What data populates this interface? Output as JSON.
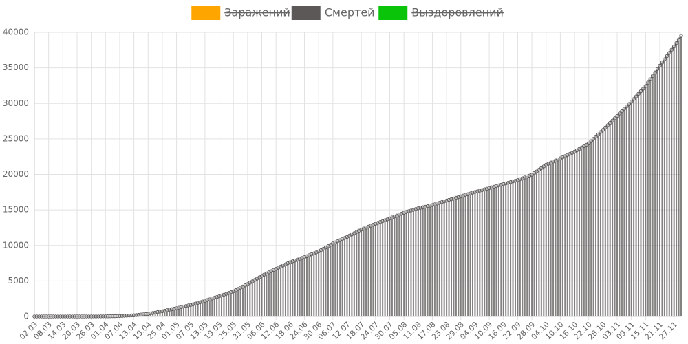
{
  "chart_data": {
    "type": "bar",
    "line_overlay": true,
    "series": [
      {
        "name": "Заражений",
        "color": "#ffa500",
        "hidden": true
      },
      {
        "name": "Смертей",
        "color": "#5b5857",
        "hidden": false,
        "values": [
          0,
          0,
          0,
          0,
          0,
          0,
          0,
          0,
          0,
          0,
          0,
          0,
          0,
          0,
          0,
          0,
          0,
          0,
          0,
          0,
          0,
          0,
          1,
          1,
          3,
          5,
          8,
          10,
          12,
          15,
          17,
          24,
          31,
          38,
          44,
          51,
          58,
          77,
          95,
          114,
          133,
          151,
          170,
          202,
          234,
          266,
          297,
          329,
          361,
          425,
          490,
          554,
          618,
          683,
          747,
          817,
          888,
          958,
          1028,
          1099,
          1169,
          1245,
          1321,
          1397,
          1473,
          1549,
          1625,
          1723,
          1821,
          1919,
          2016,
          2114,
          2212,
          2316,
          2420,
          2525,
          2629,
          2733,
          2837,
          2954,
          3072,
          3189,
          3306,
          3424,
          3541,
          3710,
          3879,
          4048,
          4217,
          4386,
          4555,
          4750,
          4945,
          5140,
          5335,
          5530,
          5725,
          5890,
          6055,
          6220,
          6385,
          6550,
          6715,
          6871,
          7027,
          7183,
          7338,
          7494,
          7650,
          7768,
          7886,
          8005,
          8123,
          8241,
          8359,
          8491,
          8623,
          8756,
          8888,
          9020,
          9152,
          9340,
          9528,
          9716,
          9904,
          10092,
          10280,
          10434,
          10588,
          10743,
          10897,
          11051,
          11205,
          11379,
          11552,
          11726,
          11900,
          12073,
          12247,
          12380,
          12513,
          12647,
          12780,
          12913,
          13046,
          13172,
          13298,
          13424,
          13550,
          13676,
          13802,
          13936,
          14070,
          14204,
          14338,
          14472,
          14606,
          14710,
          14814,
          14919,
          15023,
          15127,
          15231,
          15307,
          15382,
          15458,
          15534,
          15609,
          15685,
          15789,
          15893,
          15998,
          16102,
          16206,
          16310,
          16411,
          16511,
          16612,
          16713,
          16813,
          16914,
          17016,
          17119,
          17221,
          17323,
          17426,
          17528,
          17620,
          17712,
          17804,
          17896,
          17988,
          18080,
          18173,
          18265,
          18358,
          18450,
          18543,
          18635,
          18728,
          18822,
          18915,
          19008,
          19102,
          19195,
          19321,
          19446,
          19572,
          19697,
          19823,
          19948,
          20183,
          20418,
          20653,
          20888,
          21123,
          21358,
          21508,
          21658,
          21808,
          21957,
          22107,
          22257,
          22415,
          22573,
          22731,
          22889,
          23047,
          23205,
          23399,
          23592,
          23786,
          23979,
          24173,
          24366,
          24683,
          25000,
          25318,
          25635,
          25952,
          26269,
          26597,
          26924,
          27252,
          27580,
          27907,
          28235,
          28571,
          28907,
          29243,
          29579,
          29915,
          30251,
          30616,
          30981,
          31347,
          31712,
          32077,
          32443,
          32921,
          33399,
          33877,
          34355,
          34833,
          35311,
          35759,
          36207,
          36656,
          37104,
          37552,
          38000,
          38500,
          39000,
          39500
        ]
      },
      {
        "name": "Выздоровлений",
        "color": "#0ac40a",
        "hidden": true
      }
    ],
    "categories": [
      "02.03",
      null,
      null,
      null,
      null,
      null,
      "08.03",
      null,
      null,
      null,
      null,
      null,
      "14.03",
      null,
      null,
      null,
      null,
      null,
      "20.03",
      null,
      null,
      null,
      null,
      null,
      "26.03",
      null,
      null,
      null,
      null,
      null,
      "01.04",
      null,
      null,
      null,
      null,
      null,
      "07.04",
      null,
      null,
      null,
      null,
      null,
      "13.04",
      null,
      null,
      null,
      null,
      null,
      "19.04",
      null,
      null,
      null,
      null,
      null,
      "25.04",
      null,
      null,
      null,
      null,
      null,
      "01.05",
      null,
      null,
      null,
      null,
      null,
      "07.05",
      null,
      null,
      null,
      null,
      null,
      "13.05",
      null,
      null,
      null,
      null,
      null,
      "19.05",
      null,
      null,
      null,
      null,
      null,
      "25.05",
      null,
      null,
      null,
      null,
      null,
      "31.05",
      null,
      null,
      null,
      null,
      null,
      "06.06",
      null,
      null,
      null,
      null,
      null,
      "12.06",
      null,
      null,
      null,
      null,
      null,
      "18.06",
      null,
      null,
      null,
      null,
      null,
      "24.06",
      null,
      null,
      null,
      null,
      null,
      "30.06",
      null,
      null,
      null,
      null,
      null,
      "06.07",
      null,
      null,
      null,
      null,
      null,
      "12.07",
      null,
      null,
      null,
      null,
      null,
      "18.07",
      null,
      null,
      null,
      null,
      null,
      "24.07",
      null,
      null,
      null,
      null,
      null,
      "30.07",
      null,
      null,
      null,
      null,
      null,
      "05.08",
      null,
      null,
      null,
      null,
      null,
      "11.08",
      null,
      null,
      null,
      null,
      null,
      "17.08",
      null,
      null,
      null,
      null,
      null,
      "23.08",
      null,
      null,
      null,
      null,
      null,
      "29.08",
      null,
      null,
      null,
      null,
      null,
      "04.09",
      null,
      null,
      null,
      null,
      null,
      "10.09",
      null,
      null,
      null,
      null,
      null,
      "16.09",
      null,
      null,
      null,
      null,
      null,
      "22.09",
      null,
      null,
      null,
      null,
      null,
      "28.09",
      null,
      null,
      null,
      null,
      null,
      "04.10",
      null,
      null,
      null,
      null,
      null,
      "10.10",
      null,
      null,
      null,
      null,
      null,
      "16.10",
      null,
      null,
      null,
      null,
      null,
      "22.10",
      null,
      null,
      null,
      null,
      null,
      "28.10",
      null,
      null,
      null,
      null,
      null,
      "03.11",
      null,
      null,
      null,
      null,
      null,
      "09.11",
      null,
      null,
      null,
      null,
      null,
      "15.11",
      null,
      null,
      null,
      null,
      null,
      "21.11",
      null,
      null,
      null,
      null,
      null,
      "27.11",
      null,
      null,
      null
    ],
    "ylim": [
      0,
      40000
    ],
    "yticks": [
      0,
      5000,
      10000,
      15000,
      20000,
      25000,
      30000,
      35000,
      40000
    ],
    "grid": true
  }
}
